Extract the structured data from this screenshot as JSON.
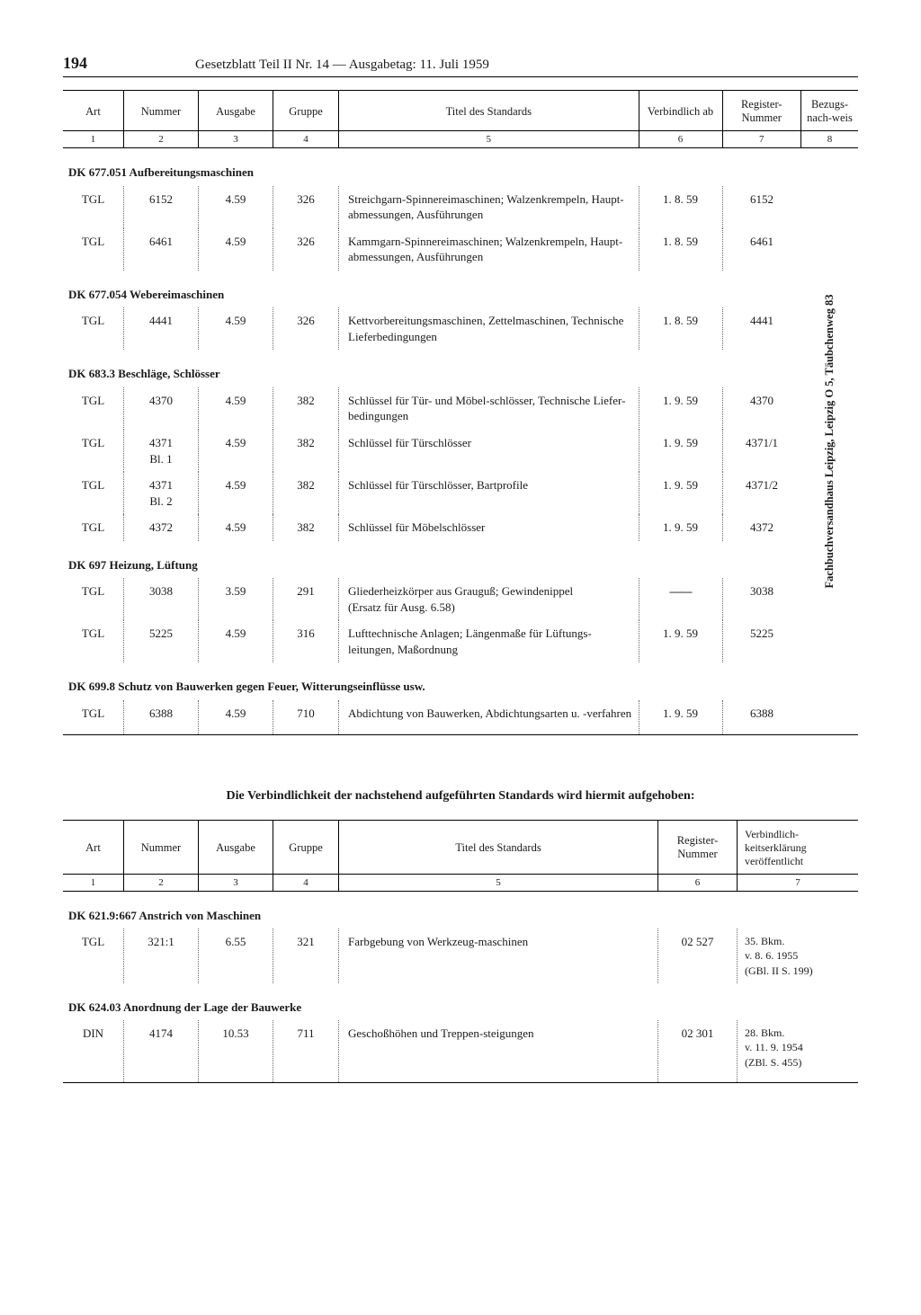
{
  "page": {
    "number": "194",
    "title": "Gesetzblatt Teil II Nr. 14 — Ausgabetag: 11. Juli 1959"
  },
  "table1": {
    "headers": [
      "Art",
      "Nummer",
      "Ausgabe",
      "Gruppe",
      "Titel des Standards",
      "Verbindlich ab",
      "Register-Nummer",
      "Bezugs-nach-weis"
    ],
    "colnums": [
      "1",
      "2",
      "3",
      "4",
      "5",
      "6",
      "7",
      "8"
    ],
    "vertical_ref": "Fachbuchversandhaus Leipzig, Leipzig O 5, Täubchenweg 83",
    "sections": [
      {
        "label": "DK 677.051 Aufbereitungsmaschinen",
        "rows": [
          {
            "art": "TGL",
            "num": "6152",
            "ausg": "4.59",
            "grp": "326",
            "titel": "Streichgarn-Spinnereimaschinen; Walzenkrempeln, Haupt-abmessungen, Ausführungen",
            "verb": "1. 8. 59",
            "reg": "6152"
          },
          {
            "art": "TGL",
            "num": "6461",
            "ausg": "4.59",
            "grp": "326",
            "titel": "Kammgarn-Spinnereimaschinen; Walzenkrempeln, Haupt-abmessungen, Ausführungen",
            "verb": "1. 8. 59",
            "reg": "6461"
          }
        ]
      },
      {
        "label": "DK 677.054 Webereimaschinen",
        "rows": [
          {
            "art": "TGL",
            "num": "4441",
            "ausg": "4.59",
            "grp": "326",
            "titel": "Kettvorbereitungsmaschinen, Zettelmaschinen, Technische Lieferbedingungen",
            "verb": "1. 8. 59",
            "reg": "4441"
          }
        ]
      },
      {
        "label": "DK 683.3 Beschläge, Schlösser",
        "rows": [
          {
            "art": "TGL",
            "num": "4370",
            "ausg": "4.59",
            "grp": "382",
            "titel": "Schlüssel für Tür- und Möbel-schlösser, Technische Liefer-bedingungen",
            "verb": "1. 9. 59",
            "reg": "4370"
          },
          {
            "art": "TGL",
            "num": "4371\nBl. 1",
            "ausg": "4.59",
            "grp": "382",
            "titel": "Schlüssel für Türschlösser",
            "verb": "1. 9. 59",
            "reg": "4371/1"
          },
          {
            "art": "TGL",
            "num": "4371\nBl. 2",
            "ausg": "4.59",
            "grp": "382",
            "titel": "Schlüssel für Türschlösser, Bartprofile",
            "verb": "1. 9. 59",
            "reg": "4371/2"
          },
          {
            "art": "TGL",
            "num": "4372",
            "ausg": "4.59",
            "grp": "382",
            "titel": "Schlüssel für Möbelschlösser",
            "verb": "1. 9. 59",
            "reg": "4372"
          }
        ]
      },
      {
        "label": "DK 697 Heizung, Lüftung",
        "rows": [
          {
            "art": "TGL",
            "num": "3038",
            "ausg": "3.59",
            "grp": "291",
            "titel": "Gliederheizkörper aus Grauguß; Gewindenippel\n(Ersatz für Ausg. 6.58)",
            "verb": "——",
            "reg": "3038"
          },
          {
            "art": "TGL",
            "num": "5225",
            "ausg": "4.59",
            "grp": "316",
            "titel": "Lufttechnische Anlagen; Längenmaße für Lüftungs-leitungen, Maßordnung",
            "verb": "1. 9. 59",
            "reg": "5225"
          }
        ]
      },
      {
        "label": "DK 699.8 Schutz von Bauwerken gegen Feuer, Witterungseinflüsse usw.",
        "rows": [
          {
            "art": "TGL",
            "num": "6388",
            "ausg": "4.59",
            "grp": "710",
            "titel": "Abdichtung von Bauwerken, Abdichtungsarten u. -verfahren",
            "verb": "1. 9. 59",
            "reg": "6388"
          }
        ]
      }
    ]
  },
  "mid_caption": "Die Verbindlichkeit der nachstehend aufgeführten Standards wird hiermit aufgehoben:",
  "table2": {
    "headers": [
      "Art",
      "Nummer",
      "Ausgabe",
      "Gruppe",
      "Titel des Standards",
      "Register-Nummer",
      "Verbindlich-keitserklärung veröffentlicht"
    ],
    "colnums": [
      "1",
      "2",
      "3",
      "4",
      "5",
      "6",
      "7"
    ],
    "sections": [
      {
        "label": "DK 621.9:667 Anstrich von Maschinen",
        "rows": [
          {
            "art": "TGL",
            "num": "321:1",
            "ausg": "6.55",
            "grp": "321",
            "titel": "Farbgebung von Werkzeug-maschinen",
            "reg": "02 527",
            "pub": "35. Bkm.\nv. 8. 6. 1955\n(GBl. II S. 199)"
          }
        ]
      },
      {
        "label": "DK 624.03 Anordnung der Lage der Bauwerke",
        "rows": [
          {
            "art": "DIN",
            "num": "4174",
            "ausg": "10.53",
            "grp": "711",
            "titel": "Geschoßhöhen und Treppen-steigungen",
            "reg": "02 301",
            "pub": "28. Bkm.\nv. 11. 9. 1954\n(ZBl. S. 455)"
          }
        ]
      }
    ]
  }
}
